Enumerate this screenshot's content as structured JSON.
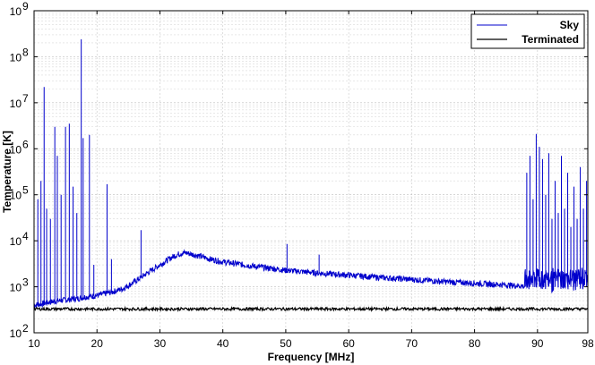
{
  "chart_data": {
    "type": "line",
    "title": "",
    "xlabel": "Frequency [MHz]",
    "ylabel": "Temperature [K]",
    "xlim": [
      10,
      98
    ],
    "ylim": [
      100,
      1000000000
    ],
    "yscale": "log",
    "grid": true,
    "legend_position": "top-right",
    "x_ticks": [
      "10",
      "20",
      "30",
      "40",
      "50",
      "60",
      "70",
      "80",
      "90",
      "98"
    ],
    "x_tick_values": [
      10,
      20,
      30,
      40,
      50,
      60,
      70,
      80,
      90,
      98
    ],
    "y_ticks": [
      {
        "value": 100,
        "base": "10",
        "exp": "2"
      },
      {
        "value": 1000,
        "base": "10",
        "exp": "3"
      },
      {
        "value": 10000,
        "base": "10",
        "exp": "4"
      },
      {
        "value": 100000,
        "base": "10",
        "exp": "5"
      },
      {
        "value": 1000000,
        "base": "10",
        "exp": "6"
      },
      {
        "value": 10000000,
        "base": "10",
        "exp": "7"
      },
      {
        "value": 100000000,
        "base": "10",
        "exp": "8"
      },
      {
        "value": 1000000000,
        "base": "10",
        "exp": "9"
      }
    ],
    "series": [
      {
        "name": "Sky",
        "color": "#0000cc",
        "x": [
          10,
          11,
          12,
          13,
          14,
          15,
          16,
          17,
          18,
          19,
          20,
          22,
          24,
          26,
          28,
          30,
          32,
          33,
          34,
          36,
          38,
          40,
          45,
          50,
          55,
          60,
          65,
          70,
          75,
          80,
          85,
          87.5,
          88,
          89,
          90,
          91,
          92,
          93,
          94,
          95,
          96,
          97,
          98
        ],
        "y": [
          400,
          420,
          450,
          480,
          500,
          520,
          540,
          560,
          600,
          620,
          650,
          750,
          900,
          1300,
          2000,
          3000,
          4500,
          5200,
          5500,
          4800,
          4000,
          3500,
          2800,
          2300,
          2000,
          1800,
          1600,
          1450,
          1300,
          1200,
          1100,
          1050,
          1000,
          1000,
          1000,
          1000,
          1000,
          1000,
          1000,
          1000,
          1000,
          1000,
          1000
        ],
        "spikes": [
          {
            "x": 10.6,
            "y": 80000
          },
          {
            "x": 11.1,
            "y": 200000
          },
          {
            "x": 11.6,
            "y": 22000000
          },
          {
            "x": 12.0,
            "y": 50000
          },
          {
            "x": 12.6,
            "y": 30000
          },
          {
            "x": 13.3,
            "y": 3000000
          },
          {
            "x": 13.7,
            "y": 700000
          },
          {
            "x": 14.3,
            "y": 100000
          },
          {
            "x": 15.0,
            "y": 3000000
          },
          {
            "x": 15.6,
            "y": 3500000
          },
          {
            "x": 16.2,
            "y": 150000
          },
          {
            "x": 16.8,
            "y": 40000
          },
          {
            "x": 17.5,
            "y": 240000000
          },
          {
            "x": 17.8,
            "y": 1700000
          },
          {
            "x": 18.8,
            "y": 2000000
          },
          {
            "x": 19.5,
            "y": 3000
          },
          {
            "x": 21.6,
            "y": 170000
          },
          {
            "x": 22.3,
            "y": 4000
          },
          {
            "x": 27.0,
            "y": 17000
          },
          {
            "x": 50.2,
            "y": 8500
          },
          {
            "x": 55.3,
            "y": 5000
          },
          {
            "x": 88.3,
            "y": 300000
          },
          {
            "x": 88.8,
            "y": 700000
          },
          {
            "x": 89.3,
            "y": 80000
          },
          {
            "x": 89.8,
            "y": 2100000
          },
          {
            "x": 90.3,
            "y": 1100000
          },
          {
            "x": 90.8,
            "y": 600000
          },
          {
            "x": 91.3,
            "y": 100000
          },
          {
            "x": 91.8,
            "y": 800000
          },
          {
            "x": 92.3,
            "y": 30000
          },
          {
            "x": 92.8,
            "y": 200000
          },
          {
            "x": 93.3,
            "y": 40000
          },
          {
            "x": 93.8,
            "y": 700000
          },
          {
            "x": 94.3,
            "y": 50000
          },
          {
            "x": 94.8,
            "y": 300000
          },
          {
            "x": 95.3,
            "y": 20000
          },
          {
            "x": 95.8,
            "y": 150000
          },
          {
            "x": 96.3,
            "y": 30000
          },
          {
            "x": 96.8,
            "y": 400000
          },
          {
            "x": 97.3,
            "y": 50000
          },
          {
            "x": 97.8,
            "y": 200000
          }
        ]
      },
      {
        "name": "Terminated",
        "color": "#000000",
        "x": [
          10,
          20,
          30,
          40,
          50,
          60,
          70,
          80,
          90,
          98
        ],
        "y": [
          330,
          330,
          330,
          330,
          330,
          330,
          330,
          330,
          330,
          330
        ]
      }
    ]
  }
}
